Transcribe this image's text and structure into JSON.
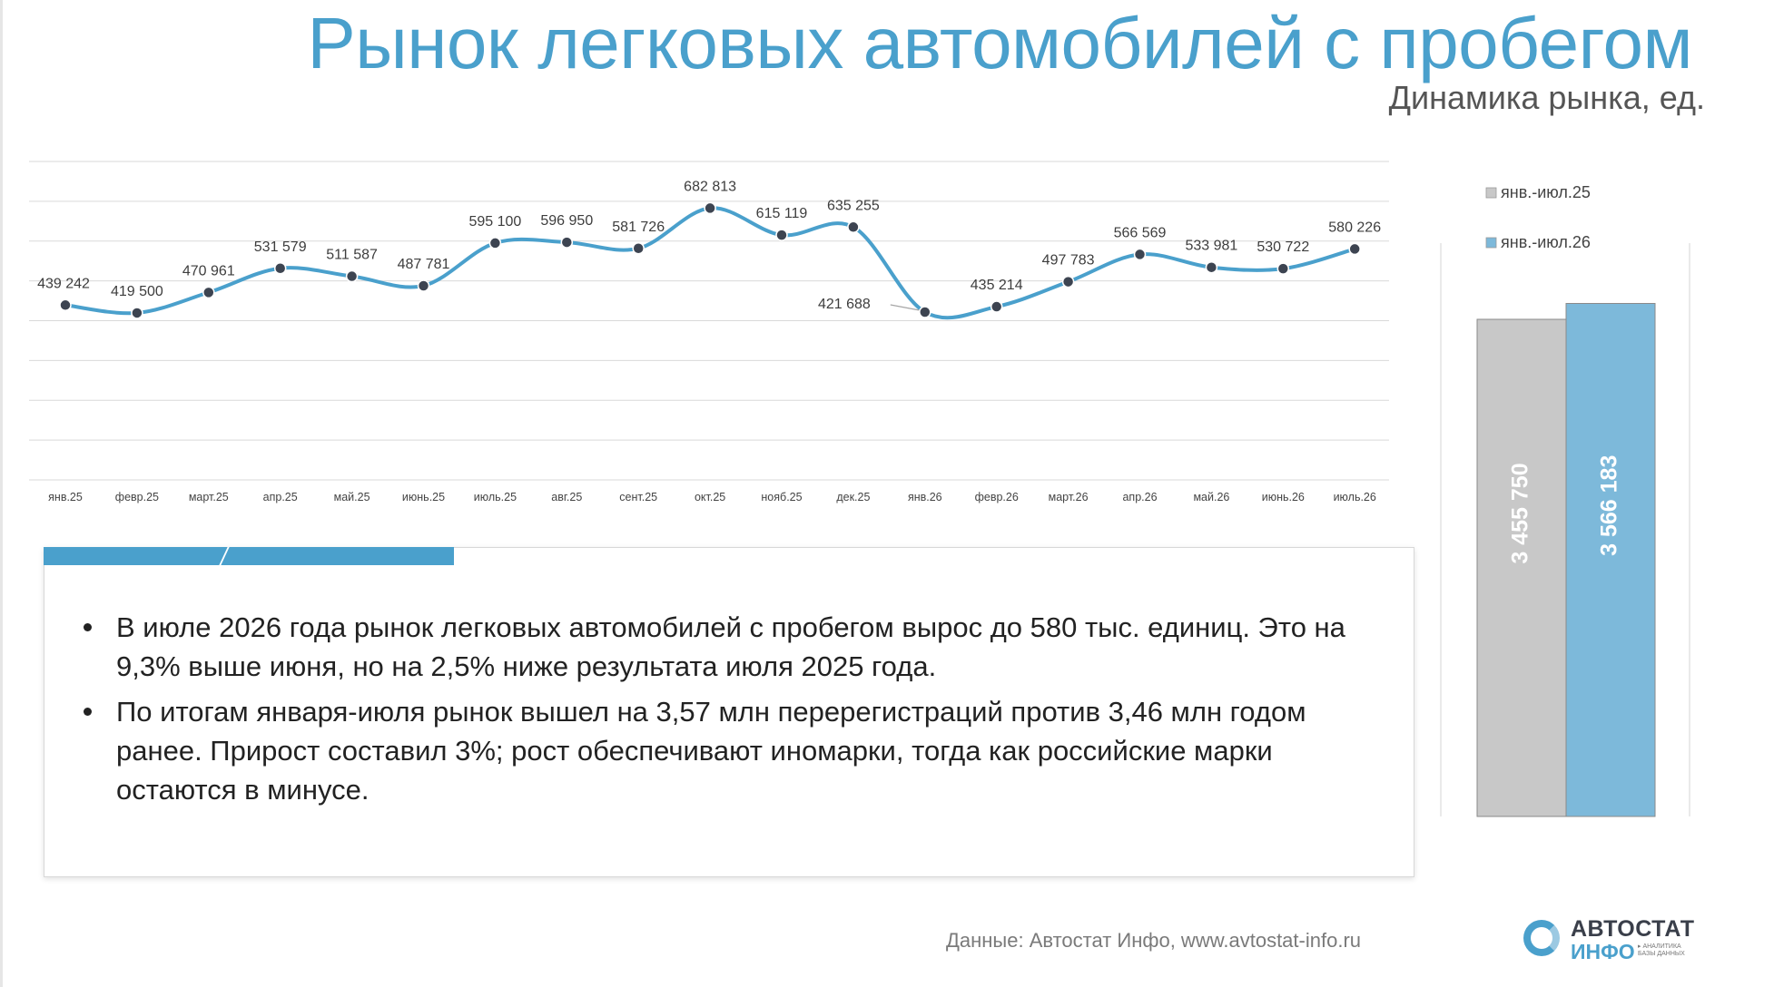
{
  "title": "Рынок легковых автомобилей с пробегом",
  "subtitle": "Динамика рынка, ед.",
  "chart_data": [
    {
      "type": "line",
      "title": "",
      "xlabel": "",
      "ylabel": "",
      "grid": true,
      "legend": "none",
      "ylim": [
        0,
        800000
      ],
      "categories": [
        "янв.25",
        "февр.25",
        "март.25",
        "апр.25",
        "май.25",
        "июнь.25",
        "июль.25",
        "авг.25",
        "сент.25",
        "окт.25",
        "нояб.25",
        "дек.25",
        "янв.26",
        "февр.26",
        "март.26",
        "апр.26",
        "май.26",
        "июнь.26",
        "июль.26"
      ],
      "series": [
        {
          "color": "#4aa0cc",
          "values": [
            439242,
            419500,
            470961,
            531579,
            511587,
            487781,
            595100,
            596950,
            581726,
            682813,
            615119,
            635255,
            421688,
            435214,
            497783,
            566569,
            533981,
            530722,
            580226
          ],
          "labels": [
            "439 242",
            "419 500",
            "470 961",
            "531 579",
            "511 587",
            "487 781",
            "595 100",
            "596 950",
            "581 726",
            "682 813",
            "615 119",
            "635 255",
            "421 688",
            "435 214",
            "497 783",
            "566 569",
            "533 981",
            "530 722",
            "580 226"
          ]
        }
      ]
    },
    {
      "type": "bar",
      "title": "",
      "legend": "top",
      "ylim": [
        0,
        4000000
      ],
      "categories": [
        "янв.-июл.25",
        "янв.-июл.26"
      ],
      "values": [
        3455750,
        3566183
      ],
      "labels": [
        "3 455 750",
        "3 566 183"
      ],
      "colors": [
        "#c8c8c8",
        "#7db9da"
      ]
    }
  ],
  "bullets": [
    "В июле 2026 года рынок легковых автомобилей с пробегом вырос до 580 тыс. единиц. Это на 9,3% выше июня, но на 2,5% ниже результата июля 2025 года.",
    "По итогам января-июля рынок вышел на 3,57 млн перерегистраций против 3,46 млн годом ранее. Прирост составил 3%; рост обеспечивают иномарки, тогда как российские марки остаются в минусе."
  ],
  "source": "Данные: Автостат Инфо, www.avtostat-info.ru",
  "logo": {
    "line1": "АВТОСТАТ",
    "line2": "ИНФО",
    "tagline": "▸ АНАЛИТИКА БАЗЫ ДАННЫХ"
  }
}
